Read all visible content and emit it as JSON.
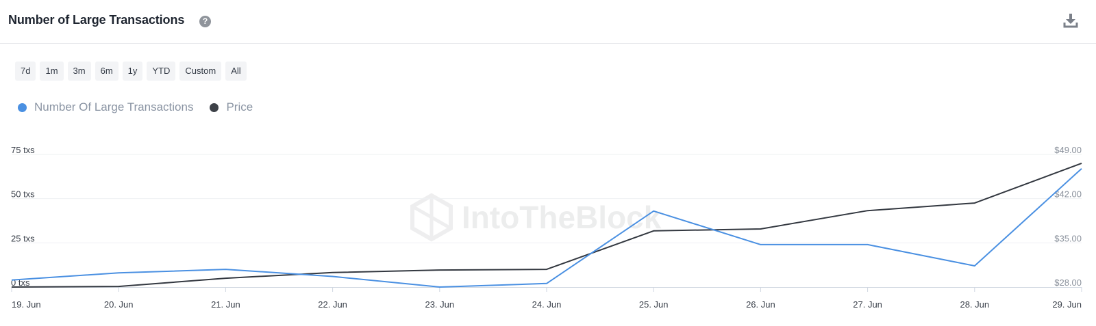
{
  "header": {
    "title": "Number of Large Transactions",
    "help_icon": "question-circle-icon",
    "download_icon": "download-icon"
  },
  "ranges": [
    "7d",
    "1m",
    "3m",
    "6m",
    "1y",
    "YTD",
    "Custom",
    "All"
  ],
  "legend": [
    {
      "label": "Number Of Large Transactions",
      "color": "#4a90e2"
    },
    {
      "label": "Price",
      "color": "#3d4148"
    }
  ],
  "watermark": "IntoTheBlock",
  "chart_data": {
    "type": "line",
    "x": [
      "19. Jun",
      "20. Jun",
      "21. Jun",
      "22. Jun",
      "23. Jun",
      "24. Jun",
      "25. Jun",
      "26. Jun",
      "27. Jun",
      "28. Jun",
      "29. Jun"
    ],
    "y_left": {
      "ticks": [
        "0 txs",
        "25 txs",
        "50 txs",
        "75 txs"
      ],
      "range": [
        0,
        75
      ]
    },
    "y_right": {
      "ticks": [
        "$28.00",
        "$35.00",
        "$42.00",
        "$49.00"
      ],
      "range": [
        28,
        49
      ]
    },
    "series": [
      {
        "name": "Number Of Large Transactions",
        "axis": "left",
        "color": "#4a90e2",
        "values": [
          4,
          8,
          10,
          6,
          0,
          2,
          43,
          24,
          24,
          12,
          67
        ]
      },
      {
        "name": "Price",
        "axis": "right",
        "color": "#333840",
        "values": [
          28.0,
          28.1,
          29.4,
          30.3,
          30.7,
          30.8,
          36.9,
          37.2,
          40.1,
          41.3,
          47.6
        ]
      }
    ],
    "grid": true,
    "legend_position": "top-left"
  }
}
